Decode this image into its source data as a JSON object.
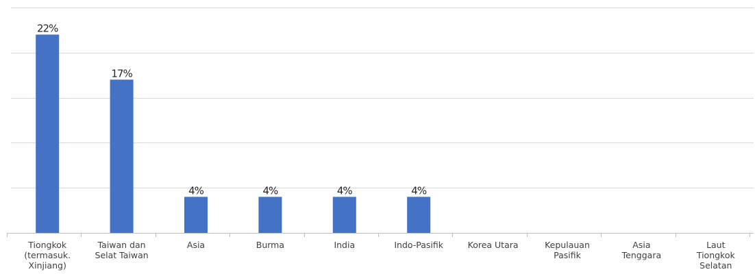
{
  "chart_data": {
    "type": "bar",
    "title": "",
    "xlabel": "",
    "ylabel": "",
    "ylim": [
      0,
      25
    ],
    "grid": true,
    "legend": "none",
    "bar_color": "#4472c4",
    "value_suffix": "%",
    "categories": [
      "Tiongkok (termasuk. Xinjiang)",
      "Taiwan dan Selat Taiwan",
      "Asia",
      "Burma",
      "India",
      "Indo-Pasifik",
      "Korea Utara",
      "Kepulauan Pasifik",
      "Asia Tenggara",
      "Laut Tiongkok Selatan"
    ],
    "category_label_lines": [
      [
        "Tiongkok",
        "(termasuk.",
        "Xinjiang)"
      ],
      [
        "Taiwan dan",
        "Selat Taiwan"
      ],
      [
        "Asia"
      ],
      [
        "Burma"
      ],
      [
        "India"
      ],
      [
        "Indo-Pasifik"
      ],
      [
        "Korea Utara"
      ],
      [
        "Kepulauan",
        "Pasifik"
      ],
      [
        "Asia",
        "Tenggara"
      ],
      [
        "Laut",
        "Tiongkok",
        "Selatan"
      ]
    ],
    "values": [
      22,
      17,
      4,
      4,
      4,
      4,
      0,
      0,
      0,
      0
    ],
    "data_labels": [
      "22%",
      "17%",
      "4%",
      "4%",
      "4%",
      "4%",
      "",
      "",
      "",
      ""
    ]
  }
}
